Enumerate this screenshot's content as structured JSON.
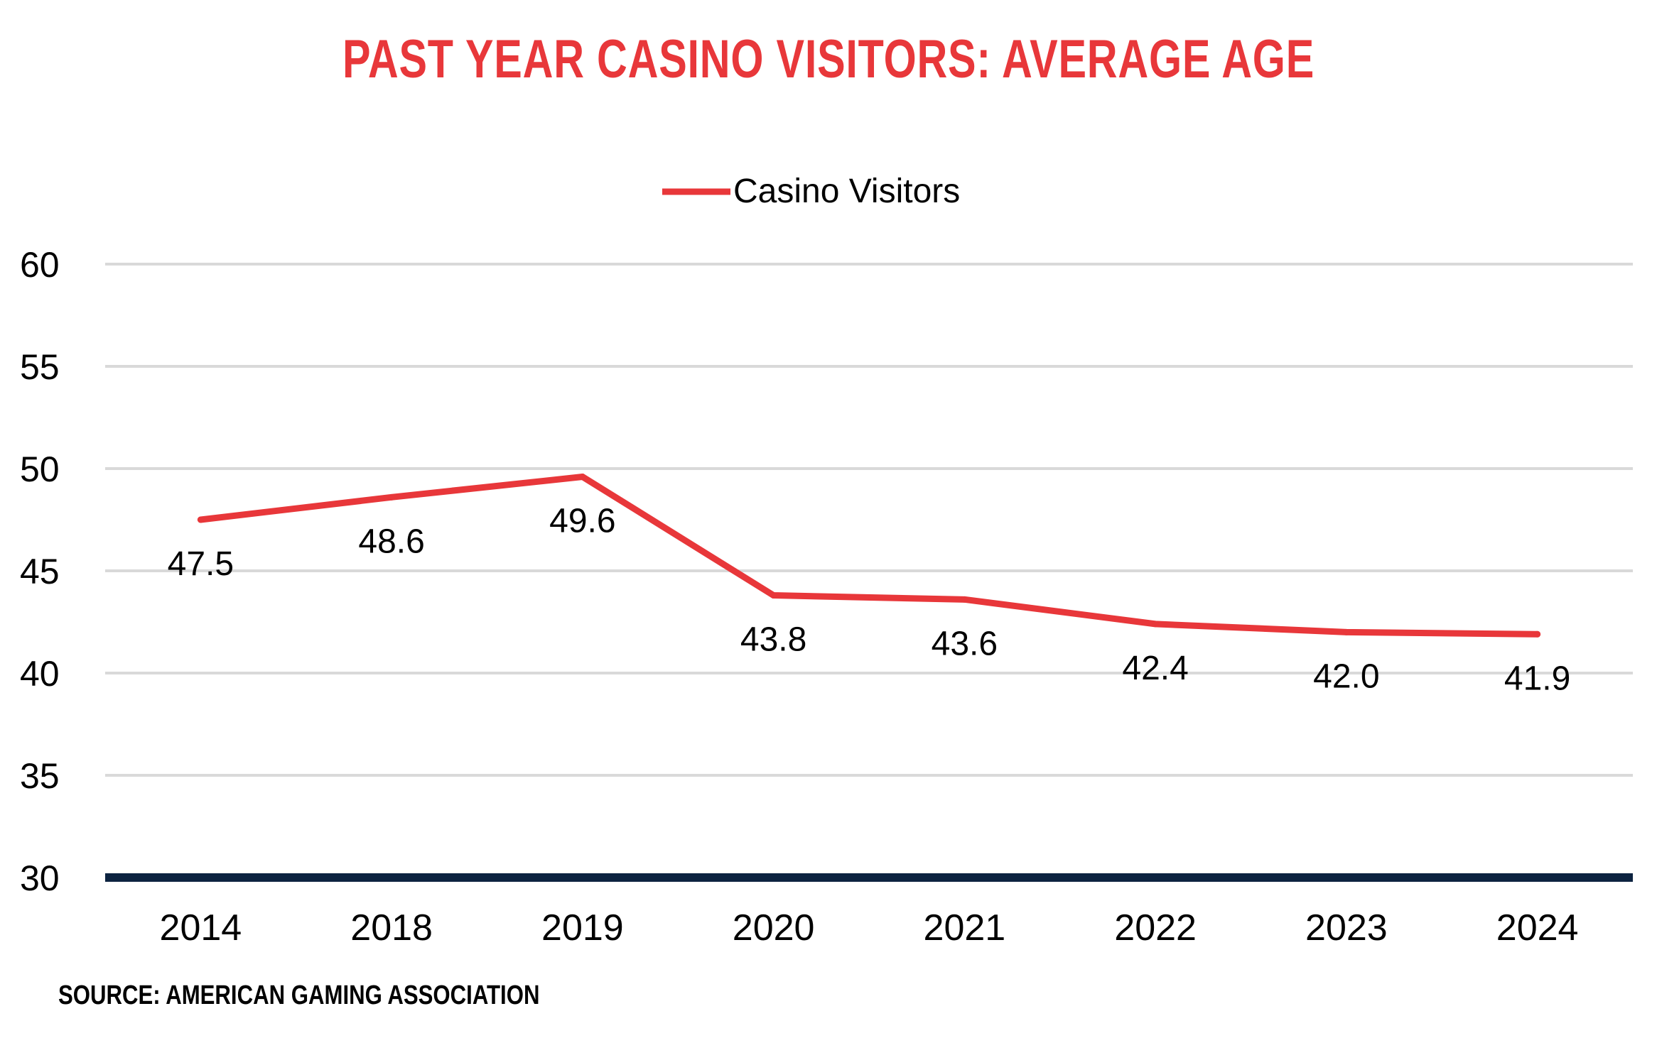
{
  "chart_data": {
    "type": "line",
    "title": "PAST YEAR CASINO VISITORS: AVERAGE AGE",
    "categories": [
      "2014",
      "2018",
      "2019",
      "2020",
      "2021",
      "2022",
      "2023",
      "2024"
    ],
    "series": [
      {
        "name": "Casino Visitors",
        "values": [
          47.5,
          48.6,
          49.6,
          43.8,
          43.6,
          42.4,
          42.0,
          41.9
        ],
        "labels": [
          "47.5",
          "48.6",
          "49.6",
          "43.8",
          "43.6",
          "42.4",
          "42.0",
          "41.9"
        ]
      }
    ],
    "ylim": [
      30,
      60
    ],
    "yticks": [
      60,
      55,
      50,
      45,
      40,
      35,
      30
    ],
    "xlabel": "",
    "ylabel": "",
    "grid": true,
    "legend_position": "top-center"
  },
  "source": "SOURCE: AMERICAN GAMING ASSOCIATION",
  "colors": {
    "title": "#e8373a",
    "line": "#e8373a",
    "grid": "#d9d9d9",
    "baseline": "#0d2340",
    "text": "#000000"
  }
}
